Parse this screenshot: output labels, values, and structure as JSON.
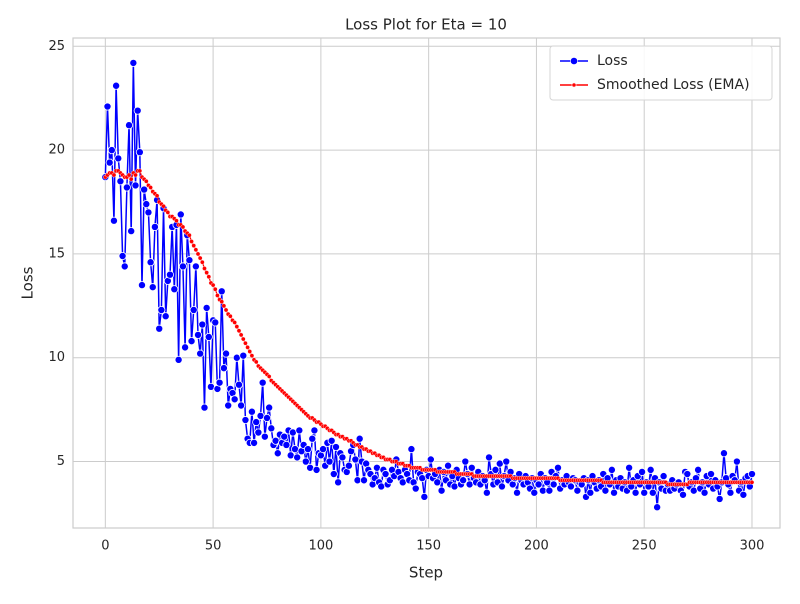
{
  "chart_data": {
    "type": "line",
    "title": "Loss Plot for Eta = 10",
    "xlabel": "Step",
    "ylabel": "Loss",
    "x": [
      0,
      1,
      2,
      3,
      4,
      5,
      6,
      7,
      8,
      9,
      10,
      11,
      12,
      13,
      14,
      15,
      16,
      17,
      18,
      19,
      20,
      21,
      22,
      23,
      24,
      25,
      26,
      27,
      28,
      29,
      30,
      31,
      32,
      33,
      34,
      35,
      36,
      37,
      38,
      39,
      40,
      41,
      42,
      43,
      44,
      45,
      46,
      47,
      48,
      49,
      50,
      51,
      52,
      53,
      54,
      55,
      56,
      57,
      58,
      59,
      60,
      61,
      62,
      63,
      64,
      65,
      66,
      67,
      68,
      69,
      70,
      71,
      72,
      73,
      74,
      75,
      76,
      77,
      78,
      79,
      80,
      81,
      82,
      83,
      84,
      85,
      86,
      87,
      88,
      89,
      90,
      91,
      92,
      93,
      94,
      95,
      96,
      97,
      98,
      99,
      100,
      101,
      102,
      103,
      104,
      105,
      106,
      107,
      108,
      109,
      110,
      111,
      112,
      113,
      114,
      115,
      116,
      117,
      118,
      119,
      120,
      121,
      122,
      123,
      124,
      125,
      126,
      127,
      128,
      129,
      130,
      131,
      132,
      133,
      134,
      135,
      136,
      137,
      138,
      139,
      140,
      141,
      142,
      143,
      144,
      145,
      146,
      147,
      148,
      149,
      150,
      151,
      152,
      153,
      154,
      155,
      156,
      157,
      158,
      159,
      160,
      161,
      162,
      163,
      164,
      165,
      166,
      167,
      168,
      169,
      170,
      171,
      172,
      173,
      174,
      175,
      176,
      177,
      178,
      179,
      180,
      181,
      182,
      183,
      184,
      185,
      186,
      187,
      188,
      189,
      190,
      191,
      192,
      193,
      194,
      195,
      196,
      197,
      198,
      199,
      200,
      201,
      202,
      203,
      204,
      205,
      206,
      207,
      208,
      209,
      210,
      211,
      212,
      213,
      214,
      215,
      216,
      217,
      218,
      219,
      220,
      221,
      222,
      223,
      224,
      225,
      226,
      227,
      228,
      229,
      230,
      231,
      232,
      233,
      234,
      235,
      236,
      237,
      238,
      239,
      240,
      241,
      242,
      243,
      244,
      245,
      246,
      247,
      248,
      249,
      250,
      251,
      252,
      253,
      254,
      255,
      256,
      257,
      258,
      259,
      260,
      261,
      262,
      263,
      264,
      265,
      266,
      267,
      268,
      269,
      270,
      271,
      272,
      273,
      274,
      275,
      276,
      277,
      278,
      279,
      280,
      281,
      282,
      283,
      284,
      285,
      286,
      287,
      288,
      289,
      290,
      291,
      292,
      293,
      294,
      295,
      296,
      297,
      298,
      299,
      300
    ],
    "series": [
      {
        "name": "Loss",
        "color": "#0000ff",
        "marker": "large",
        "values": [
          18.7,
          22.1,
          19.4,
          20.0,
          16.6,
          23.1,
          19.6,
          18.5,
          14.9,
          14.4,
          18.2,
          21.2,
          16.1,
          24.2,
          18.3,
          21.9,
          19.9,
          13.5,
          18.1,
          17.4,
          17.0,
          14.6,
          13.4,
          16.3,
          17.6,
          11.4,
          12.3,
          17.2,
          12.0,
          13.7,
          14.0,
          16.3,
          13.3,
          16.4,
          9.9,
          16.9,
          14.4,
          10.5,
          15.9,
          14.7,
          10.8,
          12.3,
          14.4,
          11.1,
          10.2,
          11.6,
          7.6,
          12.4,
          11.0,
          8.6,
          11.8,
          11.7,
          8.5,
          8.8,
          13.2,
          9.5,
          10.2,
          7.7,
          8.5,
          8.3,
          8.0,
          10.0,
          8.7,
          7.7,
          10.1,
          7.0,
          6.1,
          5.9,
          7.4,
          5.9,
          6.9,
          6.4,
          7.2,
          8.8,
          6.2,
          7.1,
          7.6,
          6.6,
          5.8,
          6.0,
          5.4,
          6.3,
          5.9,
          6.2,
          5.8,
          6.5,
          5.3,
          6.4,
          5.6,
          5.2,
          6.5,
          5.5,
          5.8,
          5.0,
          5.6,
          4.7,
          6.1,
          6.5,
          4.6,
          5.4,
          5.3,
          5.6,
          4.8,
          5.9,
          5.0,
          6.0,
          4.4,
          5.7,
          4.0,
          5.4,
          5.2,
          4.6,
          4.5,
          4.8,
          5.5,
          5.8,
          5.1,
          4.1,
          6.1,
          5.0,
          4.1,
          4.9,
          4.6,
          4.4,
          3.9,
          4.2,
          4.7,
          4.0,
          3.8,
          4.6,
          4.4,
          3.9,
          4.1,
          4.6,
          4.3,
          5.1,
          4.5,
          4.2,
          4.0,
          4.6,
          4.4,
          4.1,
          5.6,
          4.0,
          3.7,
          4.5,
          4.4,
          4.2,
          3.3,
          4.6,
          4.3,
          5.1,
          4.2,
          4.4,
          4.0,
          4.6,
          3.6,
          4.5,
          4.1,
          4.8,
          3.9,
          4.3,
          3.8,
          4.6,
          4.2,
          3.9,
          4.1,
          5.0,
          4.4,
          3.9,
          4.7,
          4.2,
          4.0,
          4.5,
          3.9,
          4.3,
          4.1,
          3.5,
          5.2,
          4.4,
          3.9,
          4.6,
          4.0,
          4.9,
          3.8,
          4.3,
          5.0,
          4.1,
          4.5,
          3.9,
          4.2,
          3.5,
          4.4,
          4.1,
          3.9,
          4.3,
          4.0,
          3.7,
          4.2,
          3.5,
          4.1,
          3.9,
          4.4,
          3.6,
          4.2,
          4.0,
          3.6,
          4.5,
          3.9,
          4.3,
          4.7,
          3.7,
          4.1,
          3.9,
          4.3,
          4.0,
          3.8,
          4.2,
          4.1,
          3.6,
          4.0,
          3.9,
          4.2,
          3.3,
          4.1,
          3.5,
          4.3,
          4.0,
          3.7,
          4.1,
          3.8,
          4.4,
          3.6,
          4.2,
          3.9,
          4.6,
          3.5,
          4.1,
          3.8,
          4.2,
          3.7,
          4.0,
          3.6,
          4.7,
          3.8,
          4.1,
          3.5,
          4.3,
          3.9,
          4.5,
          3.5,
          4.0,
          3.8,
          4.6,
          3.5,
          4.2,
          2.8,
          4.0,
          3.7,
          4.3,
          3.6,
          3.9,
          3.6,
          4.1,
          3.7,
          3.9,
          4.0,
          3.6,
          3.4,
          4.5,
          4.4,
          3.8,
          4.0,
          3.6,
          4.2,
          4.6,
          3.7,
          4.0,
          3.5,
          4.3,
          3.9,
          4.4,
          3.7,
          4.1,
          3.8,
          3.2,
          4.0,
          5.4,
          4.2,
          3.9,
          3.5,
          4.3,
          4.1,
          5.0,
          3.6,
          4.0,
          3.4,
          4.2,
          4.3,
          3.8,
          4.4
        ]
      },
      {
        "name": "Smoothed Loss (EMA)",
        "color": "#ff0000",
        "marker": "small",
        "values": [
          18.7,
          18.8,
          18.9,
          18.9,
          18.8,
          19.0,
          19.0,
          18.9,
          18.8,
          18.7,
          18.7,
          18.8,
          18.6,
          18.9,
          18.8,
          19.0,
          19.0,
          18.7,
          18.6,
          18.5,
          18.3,
          18.2,
          18.0,
          17.9,
          17.8,
          17.5,
          17.4,
          17.3,
          17.1,
          17.0,
          16.8,
          16.8,
          16.7,
          16.6,
          16.4,
          16.4,
          16.3,
          16.1,
          16.0,
          15.9,
          15.6,
          15.4,
          15.2,
          15.0,
          14.8,
          14.6,
          14.3,
          14.1,
          13.9,
          13.6,
          13.5,
          13.3,
          13.0,
          12.8,
          12.7,
          12.5,
          12.3,
          12.1,
          12.0,
          11.8,
          11.7,
          11.5,
          11.3,
          11.1,
          10.9,
          10.7,
          10.5,
          10.3,
          10.1,
          9.9,
          9.8,
          9.6,
          9.5,
          9.4,
          9.3,
          9.2,
          9.1,
          8.9,
          8.8,
          8.7,
          8.6,
          8.5,
          8.4,
          8.3,
          8.2,
          8.1,
          8.0,
          7.9,
          7.8,
          7.7,
          7.6,
          7.5,
          7.4,
          7.3,
          7.2,
          7.1,
          7.1,
          7.0,
          6.9,
          6.9,
          6.8,
          6.7,
          6.7,
          6.6,
          6.5,
          6.5,
          6.4,
          6.3,
          6.3,
          6.2,
          6.2,
          6.1,
          6.1,
          6.0,
          6.0,
          5.9,
          5.8,
          5.8,
          5.7,
          5.7,
          5.6,
          5.6,
          5.5,
          5.5,
          5.4,
          5.4,
          5.3,
          5.3,
          5.2,
          5.2,
          5.1,
          5.1,
          5.1,
          5.0,
          5.0,
          5.0,
          4.9,
          4.9,
          4.9,
          4.8,
          4.8,
          4.8,
          4.7,
          4.7,
          4.7,
          4.7,
          4.7,
          4.6,
          4.6,
          4.6,
          4.6,
          4.6,
          4.6,
          4.6,
          4.5,
          4.5,
          4.5,
          4.5,
          4.5,
          4.5,
          4.5,
          4.5,
          4.5,
          4.4,
          4.4,
          4.4,
          4.4,
          4.4,
          4.4,
          4.4,
          4.4,
          4.3,
          4.3,
          4.3,
          4.3,
          4.3,
          4.3,
          4.3,
          4.3,
          4.3,
          4.3,
          4.3,
          4.3,
          4.3,
          4.3,
          4.3,
          4.3,
          4.3,
          4.3,
          4.2,
          4.2,
          4.2,
          4.2,
          4.2,
          4.2,
          4.2,
          4.2,
          4.2,
          4.2,
          4.2,
          4.2,
          4.2,
          4.2,
          4.2,
          4.2,
          4.2,
          4.2,
          4.2,
          4.2,
          4.2,
          4.2,
          4.1,
          4.1,
          4.1,
          4.1,
          4.1,
          4.1,
          4.1,
          4.1,
          4.1,
          4.1,
          4.1,
          4.1,
          4.1,
          4.1,
          4.1,
          4.1,
          4.1,
          4.1,
          4.1,
          4.1,
          4.0,
          4.0,
          4.0,
          4.0,
          4.0,
          4.0,
          4.0,
          4.0,
          4.0,
          4.0,
          4.0,
          4.0,
          4.0,
          4.0,
          4.0,
          4.0,
          4.0,
          4.0,
          4.0,
          4.0,
          4.0,
          4.0,
          4.0,
          4.0,
          4.0,
          4.0,
          4.0,
          4.0,
          4.0,
          4.0,
          3.9,
          3.9,
          3.9,
          3.9,
          3.9,
          3.9,
          3.9,
          3.9,
          3.9,
          3.9,
          4.0,
          4.0,
          4.0,
          4.0,
          4.0,
          4.0,
          4.0,
          4.0,
          4.0,
          4.0,
          4.0,
          4.0,
          4.0,
          4.0,
          4.0,
          4.0,
          4.0,
          4.0,
          4.0,
          4.0,
          4.0,
          4.0,
          4.0,
          4.0,
          4.0,
          4.0,
          4.0,
          4.0,
          4.0,
          4.0
        ]
      }
    ],
    "xlim": [
      -15,
      313
    ],
    "xticks": [
      0,
      50,
      100,
      150,
      200,
      250,
      300
    ],
    "ylim": [
      1.8,
      25.4
    ],
    "yticks": [
      5,
      10,
      15,
      20,
      25
    ],
    "grid": true,
    "legend": "upper right"
  }
}
